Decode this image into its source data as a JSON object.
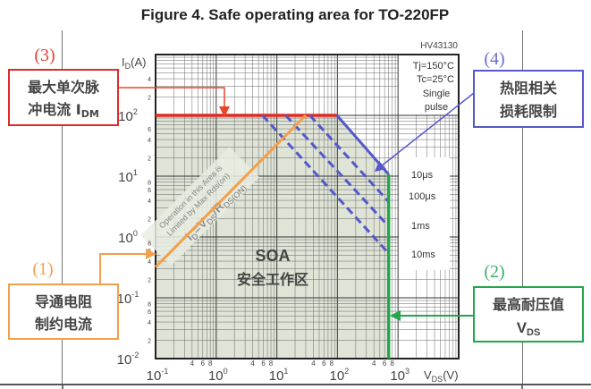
{
  "title": "Figure 4. Safe operating area for TO-220FP",
  "part_number": "HV43130",
  "conditions": [
    "Tj=150°C",
    "Tc=25°C",
    "Single",
    "pulse"
  ],
  "soa_label": "SOA",
  "soa_label_cn": "安全工作区",
  "rds_note": [
    "Operation in this Area is",
    "Limited by Max Rds(on)"
  ],
  "rds_formula": {
    "a": "I",
    "a_sub": "D",
    "b": "=V",
    "b_sub": "DS",
    "c": "/R",
    "c_sub": "DS(ON)"
  },
  "annotations": {
    "a1": {
      "num": "(1)",
      "line1": "导通电阻",
      "line2": "制约电流",
      "color": "#f2a04c"
    },
    "a2": {
      "num": "(2)",
      "line1": "最高耐压值",
      "line2": "V",
      "line2_sub": "DS",
      "color": "#22a84b"
    },
    "a3": {
      "num": "(3)",
      "line1": "最大单次脉",
      "line2": "冲电流 I",
      "line2_sub": "DM",
      "color": "#e02a24"
    },
    "a4": {
      "num": "(4)",
      "line1": "热阻相关",
      "line2": "损耗限制",
      "color": "#5458cc"
    }
  },
  "chart_data": {
    "type": "line",
    "title": "Figure 4. Safe operating area for TO-220FP",
    "xlabel": "VDS(V)",
    "ylabel": "ID(A)",
    "x_scale": "log",
    "y_scale": "log",
    "xlim": [
      0.1,
      10000
    ],
    "ylim": [
      0.01,
      1000
    ],
    "grid": true,
    "x_major_ticks": [
      {
        "base": "10",
        "exp": "-1",
        "v": 0.1
      },
      {
        "base": "10",
        "exp": "0",
        "v": 1
      },
      {
        "base": "10",
        "exp": "1",
        "v": 10
      },
      {
        "base": "10",
        "exp": "2",
        "v": 100
      },
      {
        "base": "10",
        "exp": "3",
        "v": 1000
      }
    ],
    "x_minor_tick_labels": [
      "4",
      "6",
      "8"
    ],
    "y_major_ticks": [
      {
        "base": "10",
        "exp": "-2",
        "v": 0.01
      },
      {
        "base": "10",
        "exp": "-1",
        "v": 0.1
      },
      {
        "base": "10",
        "exp": "0",
        "v": 1
      },
      {
        "base": "10",
        "exp": "1",
        "v": 10
      },
      {
        "base": "10",
        "exp": "2",
        "v": 100
      }
    ],
    "y_minor_tick_labels": [
      "2",
      "4",
      "6",
      "8"
    ],
    "series": [
      {
        "name": "IDM limit",
        "color": "#e02a24",
        "style": "solid",
        "points": [
          [
            0.1,
            100
          ],
          [
            98,
            100
          ]
        ]
      },
      {
        "name": "10μs",
        "color": "#5458cc",
        "style": "solid",
        "points": [
          [
            98,
            100
          ],
          [
            700,
            10.7
          ]
        ]
      },
      {
        "name": "100μs",
        "color": "#5458cc",
        "style": "dashed",
        "points": [
          [
            35,
            100
          ],
          [
            700,
            3.8
          ]
        ]
      },
      {
        "name": "1ms",
        "color": "#5458cc",
        "style": "dashed",
        "points": [
          [
            14,
            100
          ],
          [
            700,
            1.5
          ]
        ]
      },
      {
        "name": "10ms",
        "color": "#5458cc",
        "style": "dashed",
        "points": [
          [
            5.8,
            100
          ],
          [
            700,
            0.54
          ]
        ]
      },
      {
        "name": "VDS limit",
        "color": "#22a84b",
        "style": "solid",
        "points": [
          [
            700,
            10.7
          ],
          [
            700,
            0.01
          ]
        ]
      },
      {
        "name": "RDS(on) limit",
        "color": "#f2a04c",
        "style": "solid",
        "points": [
          [
            0.1,
            0.32
          ],
          [
            30,
            100
          ]
        ]
      }
    ],
    "pulse_labels": [
      "10μs",
      "100μs",
      "1ms",
      "10ms"
    ],
    "soa_region": [
      [
        0.1,
        0.01
      ],
      [
        0.1,
        100
      ],
      [
        98,
        100
      ],
      [
        700,
        10.7
      ],
      [
        700,
        0.01
      ]
    ],
    "shade_color": "#dfe4d6"
  }
}
